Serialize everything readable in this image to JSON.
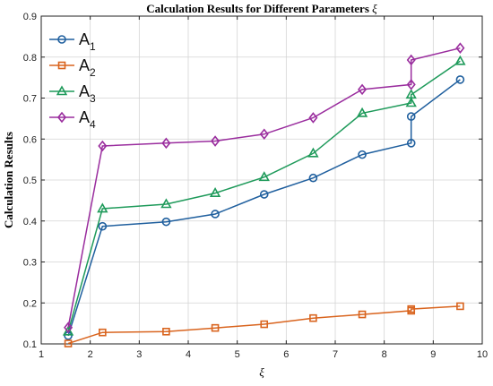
{
  "chart_data": {
    "type": "line",
    "title": "Calculation Results for Different Parameters ",
    "title_symbol": "ξ",
    "xlabel": "ξ",
    "ylabel": "Calculation Results",
    "xlim": [
      1,
      10
    ],
    "ylim": [
      0.1,
      0.9
    ],
    "xticks": [
      "1",
      "2",
      "3",
      "4",
      "5",
      "6",
      "7",
      "8",
      "9",
      "10"
    ],
    "yticks": [
      "0.1",
      "0.2",
      "0.3",
      "0.4",
      "0.5",
      "0.6",
      "0.7",
      "0.8",
      "0.9"
    ],
    "grid": true,
    "legend_position": "top-left",
    "series": [
      {
        "name": "A",
        "subscript": "1",
        "color": "#1f5f9e",
        "marker": "circle",
        "points": [
          [
            1.55,
            0.12
          ],
          [
            2.25,
            0.387
          ],
          [
            3.55,
            0.398
          ],
          [
            4.55,
            0.417
          ],
          [
            5.55,
            0.465
          ],
          [
            6.55,
            0.505
          ],
          [
            7.55,
            0.562
          ],
          [
            8.55,
            0.59
          ],
          [
            8.55,
            0.655
          ],
          [
            9.55,
            0.745
          ]
        ]
      },
      {
        "name": "A",
        "subscript": "2",
        "color": "#d9641e",
        "marker": "square",
        "points": [
          [
            1.55,
            0.101
          ],
          [
            2.25,
            0.128
          ],
          [
            3.55,
            0.13
          ],
          [
            4.55,
            0.139
          ],
          [
            5.55,
            0.148
          ],
          [
            6.55,
            0.163
          ],
          [
            7.55,
            0.172
          ],
          [
            8.55,
            0.181
          ],
          [
            8.55,
            0.185
          ],
          [
            9.55,
            0.192
          ]
        ]
      },
      {
        "name": "A",
        "subscript": "3",
        "color": "#1e9a5a",
        "marker": "triangle",
        "points": [
          [
            1.55,
            0.13
          ],
          [
            2.25,
            0.43
          ],
          [
            3.55,
            0.441
          ],
          [
            4.55,
            0.468
          ],
          [
            5.55,
            0.507
          ],
          [
            6.55,
            0.565
          ],
          [
            7.55,
            0.663
          ],
          [
            8.55,
            0.688
          ],
          [
            8.55,
            0.708
          ],
          [
            9.55,
            0.79
          ]
        ]
      },
      {
        "name": "A",
        "subscript": "4",
        "color": "#9a2d9e",
        "marker": "diamond",
        "points": [
          [
            1.55,
            0.14
          ],
          [
            2.25,
            0.583
          ],
          [
            3.55,
            0.59
          ],
          [
            4.55,
            0.595
          ],
          [
            5.55,
            0.612
          ],
          [
            6.55,
            0.652
          ],
          [
            7.55,
            0.721
          ],
          [
            8.55,
            0.733
          ],
          [
            8.55,
            0.793
          ],
          [
            9.55,
            0.822
          ]
        ]
      }
    ]
  }
}
